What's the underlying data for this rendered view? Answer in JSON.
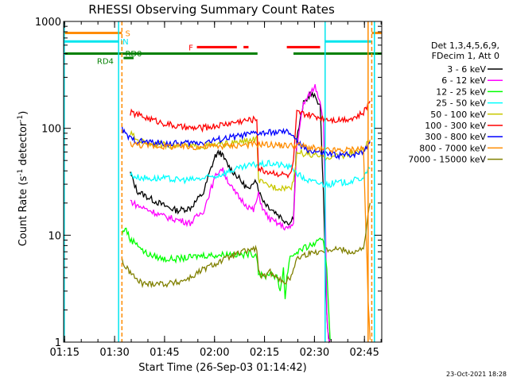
{
  "chart_data": {
    "type": "line",
    "title": "RHESSI Observing Summary Count Rates",
    "xlabel": "Start Time (26-Sep-03 01:14:42)",
    "ylabel_main": "Count Rate (s",
    "ylabel_sup": "-1",
    "ylabel_rest": " detector",
    "ylabel_close": ")",
    "yscale": "log",
    "xlim_minutes": [
      0,
      95.5
    ],
    "ylim": [
      1,
      1000
    ],
    "x_ticks": [
      {
        "label": "01:15",
        "min": 0.3
      },
      {
        "label": "01:30",
        "min": 15.3
      },
      {
        "label": "01:45",
        "min": 30.3
      },
      {
        "label": "02:00",
        "min": 45.3
      },
      {
        "label": "02:15",
        "min": 60.3
      },
      {
        "label": "02:30",
        "min": 75.3
      },
      {
        "label": "02:45",
        "min": 90.3
      }
    ],
    "y_ticks": [
      {
        "label": "1",
        "value": 1
      },
      {
        "label": "10",
        "value": 10
      },
      {
        "label": "100",
        "value": 100
      },
      {
        "label": "1000",
        "value": 1000
      }
    ],
    "legend_title": [
      "Det 1,3,4,5,6,9,",
      "FDecim 1, Att 0"
    ],
    "legend_position": "right",
    "flag_labels": [
      {
        "text": "S",
        "color": "#ff8c00",
        "min": 18.5,
        "value": 780
      },
      {
        "text": "IN",
        "color": "#00e5ee",
        "min": 17.0,
        "value": 650
      },
      {
        "text": "F",
        "color": "#ff0000",
        "min": 37.5,
        "value": 575
      },
      {
        "text": "RD0",
        "color": "#008000",
        "min": 18.5,
        "value": 505
      },
      {
        "text": "RD4",
        "color": "#008000",
        "min": 10.0,
        "value": 428
      }
    ],
    "flags": [
      {
        "name": "S",
        "color": "#ff8c00",
        "value": 780,
        "segments": [
          [
            0,
            17.5
          ],
          [
            92.5,
            95.5
          ]
        ]
      },
      {
        "name": "IN",
        "color": "#00e5ee",
        "value": 650,
        "segments": [
          [
            0,
            16.5
          ],
          [
            78.5,
            92.5
          ]
        ]
      },
      {
        "name": "F",
        "color": "#ff0000",
        "value": 575,
        "segments": [
          [
            40,
            52
          ],
          [
            54,
            55.5
          ],
          [
            67,
            77
          ]
        ]
      },
      {
        "name": "RD0",
        "color": "#008000",
        "value": 500,
        "segments": [
          [
            0,
            58.2
          ],
          [
            69,
            95.5
          ]
        ]
      },
      {
        "name": "RD4",
        "color": "#008000",
        "value": 455,
        "segments": [
          [
            18,
            21
          ]
        ]
      }
    ],
    "vlines": [
      {
        "min": 0.2,
        "color": "#00e5ee",
        "style": "solid"
      },
      {
        "min": 16.5,
        "color": "#00e5ee",
        "style": "solid"
      },
      {
        "min": 17.5,
        "color": "#ff8c00",
        "style": "dashed"
      },
      {
        "min": 78.5,
        "color": "#00e5ee",
        "style": "solid"
      },
      {
        "min": 91.4,
        "color": "#ff8c00",
        "style": "solid"
      },
      {
        "min": 92.5,
        "color": "#ff8c00",
        "style": "dashed"
      },
      {
        "min": 93.3,
        "color": "#00e5ee",
        "style": "solid"
      }
    ],
    "series": [
      {
        "name": "3 - 6 keV",
        "color": "#000000",
        "x": [
          20,
          22,
          26,
          30,
          34,
          38,
          42,
          44,
          45.5,
          47,
          48.5,
          50,
          52,
          54,
          56,
          57.5,
          59,
          60.5,
          62,
          64,
          66,
          68,
          69,
          70,
          72,
          74,
          76,
          77,
          78,
          79,
          79.5,
          80
        ],
        "y": [
          38,
          26,
          22,
          19,
          17,
          18,
          25,
          40,
          55,
          60,
          50,
          42,
          36,
          30,
          26,
          35,
          24,
          20,
          18,
          16,
          14,
          13,
          15,
          80,
          170,
          210,
          190,
          160,
          25,
          1.8,
          1.1,
          1.05
        ]
      },
      {
        "name": "6 - 12 keV",
        "color": "#ff00ff",
        "x": [
          20,
          22,
          26,
          30,
          34,
          38,
          42,
          44,
          46,
          47.5,
          49,
          51,
          53,
          55,
          57,
          58.5,
          60,
          62,
          64,
          66,
          68,
          69,
          70,
          72,
          74,
          75.5,
          77,
          78,
          78.5,
          79,
          79.5,
          80
        ],
        "y": [
          21,
          19,
          17,
          15,
          14,
          13,
          17,
          26,
          38,
          42,
          34,
          26,
          22,
          19,
          17,
          24,
          17,
          14,
          13,
          12,
          11.5,
          13,
          70,
          170,
          210,
          250,
          180,
          120,
          25,
          1.8,
          1.1,
          1.05
        ]
      },
      {
        "name": "12 - 25 keV",
        "color": "#00ff00",
        "x": [
          17.5,
          18.5,
          20,
          22,
          24,
          26,
          30,
          34,
          38,
          42,
          46,
          50,
          54,
          56,
          58,
          58.5,
          60,
          62,
          64,
          65,
          66,
          66.5,
          67,
          68,
          69,
          70,
          72,
          74,
          76,
          78,
          79,
          80
        ],
        "y": [
          10,
          12,
          9,
          8.5,
          7,
          6.5,
          6,
          6,
          6.2,
          6.5,
          6.5,
          6.7,
          6.5,
          6.8,
          6.5,
          4.5,
          4,
          4.5,
          4,
          3,
          5,
          2.5,
          4,
          6.5,
          6.5,
          7,
          7.5,
          8,
          8.5,
          9,
          5,
          1.05
        ]
      },
      {
        "name": "25 - 50 keV",
        "color": "#00ffff",
        "x": [
          20,
          22,
          26,
          30,
          34,
          38,
          42,
          46,
          50,
          54,
          56,
          58,
          60,
          62,
          64,
          66,
          68,
          69,
          70,
          72,
          74,
          76,
          78,
          80,
          82,
          84,
          86,
          88,
          90,
          92
        ],
        "y": [
          37,
          35,
          34,
          34,
          33,
          33,
          34,
          36,
          40,
          43,
          45,
          46,
          46,
          47,
          46,
          45,
          43,
          42,
          38,
          34,
          32,
          31,
          30,
          30,
          31,
          31,
          32,
          33,
          35,
          42
        ]
      },
      {
        "name": "50 - 100 keV",
        "color": "#c8c800",
        "x": [
          20,
          22,
          26,
          30,
          34,
          38,
          42,
          46,
          50,
          54,
          56,
          58,
          58.5,
          60,
          62,
          64,
          66,
          68,
          69,
          70,
          72,
          74,
          76,
          78,
          80,
          82,
          84,
          86,
          88,
          90,
          92
        ],
        "y": [
          90,
          78,
          72,
          70,
          69,
          68,
          68,
          70,
          72,
          75,
          77,
          80,
          33,
          30,
          29,
          28,
          28,
          28,
          30,
          60,
          58,
          56,
          55,
          54,
          54,
          55,
          56,
          58,
          60,
          63,
          78
        ]
      },
      {
        "name": "100 - 300 keV",
        "color": "#ff0000",
        "x": [
          20,
          22,
          24,
          26,
          30,
          34,
          38,
          42,
          46,
          50,
          54,
          56,
          58,
          58.5,
          60,
          62,
          64,
          66,
          68,
          69,
          70,
          72,
          74,
          76,
          78,
          80,
          82,
          84,
          86,
          88,
          90,
          92
        ],
        "y": [
          140,
          135,
          128,
          122,
          112,
          104,
          100,
          101,
          106,
          112,
          118,
          120,
          122,
          42,
          40,
          39,
          38,
          37,
          36,
          48,
          140,
          136,
          132,
          128,
          125,
          122,
          120,
          122,
          124,
          128,
          140,
          180
        ]
      },
      {
        "name": "300 - 800 keV",
        "color": "#0000ff",
        "x": [
          17.5,
          18.5,
          20,
          22,
          26,
          30,
          34,
          38,
          42,
          46,
          50,
          54,
          56,
          58,
          60,
          62,
          64,
          66,
          68,
          69,
          70,
          72,
          74,
          76,
          78,
          80,
          82,
          84,
          86,
          88,
          90,
          92
        ],
        "y": [
          100,
          88,
          80,
          76,
          74,
          72,
          72,
          73,
          74,
          78,
          82,
          86,
          88,
          90,
          90,
          91,
          92,
          92,
          91,
          85,
          75,
          65,
          62,
          60,
          58,
          57,
          56,
          56,
          57,
          58,
          62,
          75
        ]
      },
      {
        "name": "800 - 7000 keV",
        "color": "#ff8c00",
        "x": [
          20,
          22,
          26,
          30,
          34,
          38,
          42,
          46,
          50,
          54,
          58,
          60,
          62,
          64,
          66,
          68,
          70,
          72,
          74,
          76,
          78,
          80,
          82,
          84,
          86,
          88,
          90,
          91.4,
          92
        ],
        "y": [
          72,
          70,
          69,
          68,
          67,
          67,
          67,
          68,
          69,
          70,
          71,
          71,
          70,
          70,
          69,
          69,
          70,
          68,
          66,
          64,
          63,
          62,
          62,
          62,
          63,
          64,
          65,
          2.5,
          1.05
        ]
      },
      {
        "name": "7000 - 15000 keV",
        "color": "#808000",
        "x": [
          17.5,
          18.5,
          20,
          22,
          24,
          26,
          28,
          30,
          34,
          38,
          42,
          46,
          50,
          54,
          56,
          58,
          58.5,
          60,
          62,
          64,
          66,
          68,
          70,
          72,
          74,
          76,
          78,
          80,
          82,
          84,
          86,
          88,
          90,
          92
        ],
        "y": [
          6,
          5,
          4.5,
          3.8,
          3.5,
          3.5,
          3.6,
          3.5,
          3.6,
          4,
          4.8,
          5.5,
          6.3,
          7,
          7.3,
          7.5,
          4.5,
          4,
          4.5,
          4.2,
          3.5,
          4,
          6,
          6.5,
          6.8,
          7,
          7.2,
          7.5,
          7.5,
          7.3,
          7,
          7,
          7.5,
          20
        ]
      }
    ],
    "footer_date": "23-Oct-2021 18:28"
  }
}
